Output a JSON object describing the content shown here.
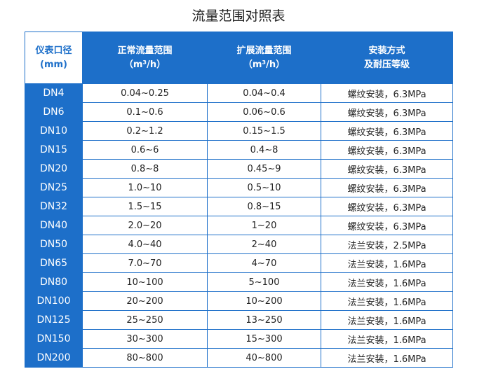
{
  "header": {
    "title": "流量范围对照表"
  },
  "table": {
    "columns": [
      [
        "仪表口径",
        "(mm)"
      ],
      [
        "正常流量范围",
        "（m³/h）"
      ],
      [
        "扩展流量范围",
        "（m³/h）"
      ],
      [
        "安装方式",
        "及耐压等级"
      ]
    ],
    "rows": [
      [
        "DN4",
        "0.04~0.25",
        "0.04~0.4",
        "螺纹安装，6.3MPa"
      ],
      [
        "DN6",
        "0.1~0.6",
        "0.06~0.6",
        "螺纹安装，6.3MPa"
      ],
      [
        "DN10",
        "0.2~1.2",
        "0.15~1.5",
        "螺纹安装，6.3MPa"
      ],
      [
        "DN15",
        "0.6~6",
        "0.4~8",
        "螺纹安装，6.3MPa"
      ],
      [
        "DN20",
        "0.8~8",
        "0.45~9",
        "螺纹安装，6.3MPa"
      ],
      [
        "DN25",
        "1.0~10",
        "0.5~10",
        "螺纹安装，6.3MPa"
      ],
      [
        "DN32",
        "1.5~15",
        "0.8~15",
        "螺纹安装，6.3MPa"
      ],
      [
        "DN40",
        "2.0~20",
        "1~20",
        "螺纹安装，6.3MPa"
      ],
      [
        "DN50",
        "4.0~40",
        "2~40",
        "法兰安装，2.5MPa"
      ],
      [
        "DN65",
        "7.0~70",
        "4~70",
        "法兰安装，1.6MPa"
      ],
      [
        "DN80",
        "10~100",
        "5~100",
        "法兰安装，1.6MPa"
      ],
      [
        "DN100",
        "20~200",
        "10~200",
        "法兰安装，1.6MPa"
      ],
      [
        "DN125",
        "25~250",
        "13~250",
        "法兰安装，1.6MPa"
      ],
      [
        "DN150",
        "30~300",
        "15~300",
        "法兰安装，1.6MPa"
      ],
      [
        "DN200",
        "80~800",
        "40~800",
        "法兰安装，1.6MPa"
      ]
    ]
  }
}
